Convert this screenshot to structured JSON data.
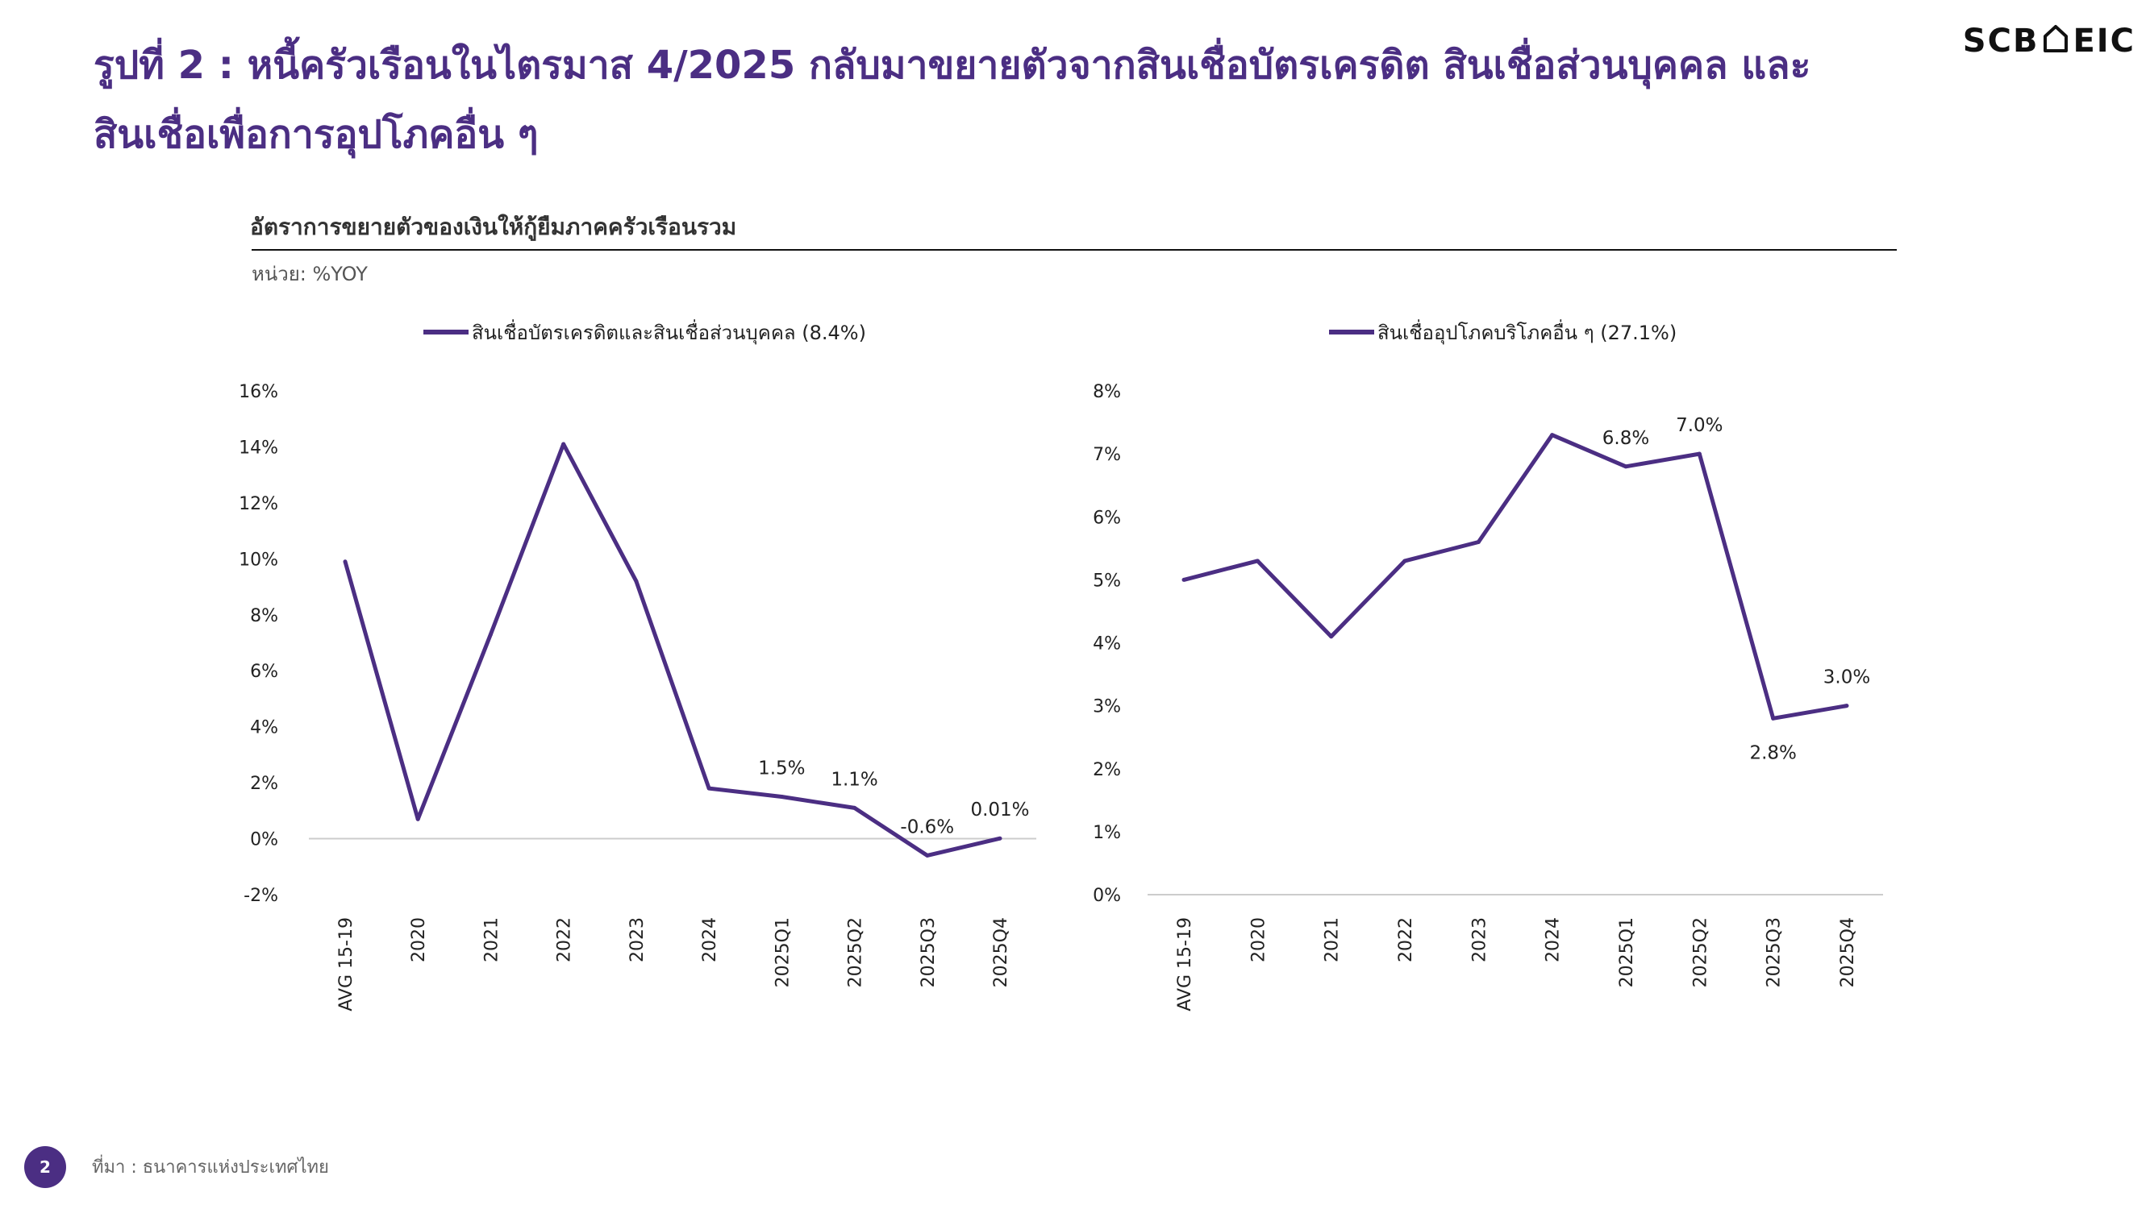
{
  "title": "รูปที่ 2 : หนี้ครัวเรือนในไตรมาส 4/2025 กลับมาขยายตัวจากสินเชื่อบัตรเครดิต สินเชื่อส่วนบุคคล และสินเชื่อเพื่อการอุปโภคอื่น ๆ",
  "logo": {
    "left": "SCB",
    "right": "EIC"
  },
  "chart_heading": "อัตราการขยายตัวของเงินให้กู้ยืมภาคครัวเรือนรวม",
  "unit_label": "หน่วย: %YOY",
  "footer": {
    "page_number": "2",
    "source": "ที่มา : ธนาคารแห่งประเทศไทย"
  },
  "colors": {
    "accent": "#4b2e83",
    "line": "#4b2e83",
    "zero_line": "#cccccc"
  },
  "chart_data": [
    {
      "type": "line",
      "legend_position": "top",
      "grid": false,
      "categories": [
        "AVG 15-19",
        "2020",
        "2021",
        "2022",
        "2023",
        "2024",
        "2025Q1",
        "2025Q2",
        "2025Q3",
        "2025Q4"
      ],
      "series": [
        {
          "name": "สินเชื่อบัตรเครดิตและสินเชื่อส่วนบุคคล (8.4%)",
          "values": [
            9.9,
            0.7,
            7.3,
            14.1,
            9.2,
            1.8,
            1.5,
            1.1,
            -0.6,
            0.01
          ]
        }
      ],
      "data_labels": [
        {
          "index": 6,
          "text": "1.5%",
          "position": "above"
        },
        {
          "index": 7,
          "text": "1.1%",
          "position": "above"
        },
        {
          "index": 8,
          "text": "-0.6%",
          "position": "above"
        },
        {
          "index": 9,
          "text": "0.01%",
          "position": "above"
        }
      ],
      "ylim": [
        -2,
        16
      ],
      "yticks": [
        -2,
        0,
        2,
        4,
        6,
        8,
        10,
        12,
        14,
        16
      ],
      "ytick_labels": [
        "-2%",
        "0%",
        "2%",
        "4%",
        "6%",
        "8%",
        "10%",
        "12%",
        "14%",
        "16%"
      ],
      "xlabel": "",
      "ylabel": ""
    },
    {
      "type": "line",
      "legend_position": "top",
      "grid": false,
      "categories": [
        "AVG 15-19",
        "2020",
        "2021",
        "2022",
        "2023",
        "2024",
        "2025Q1",
        "2025Q2",
        "2025Q3",
        "2025Q4"
      ],
      "series": [
        {
          "name": "สินเชื่ออุปโภคบริโภคอื่น ๆ (27.1%)",
          "values": [
            5.0,
            5.3,
            4.1,
            5.3,
            5.6,
            7.3,
            6.8,
            7.0,
            2.8,
            3.0
          ]
        }
      ],
      "data_labels": [
        {
          "index": 6,
          "text": "6.8%",
          "position": "above"
        },
        {
          "index": 7,
          "text": "7.0%",
          "position": "above"
        },
        {
          "index": 8,
          "text": "2.8%",
          "position": "below"
        },
        {
          "index": 9,
          "text": "3.0%",
          "position": "above"
        }
      ],
      "ylim": [
        0,
        8
      ],
      "yticks": [
        0,
        1,
        2,
        3,
        4,
        5,
        6,
        7,
        8
      ],
      "ytick_labels": [
        "0%",
        "1%",
        "2%",
        "3%",
        "4%",
        "5%",
        "6%",
        "7%",
        "8%"
      ],
      "xlabel": "",
      "ylabel": ""
    }
  ]
}
